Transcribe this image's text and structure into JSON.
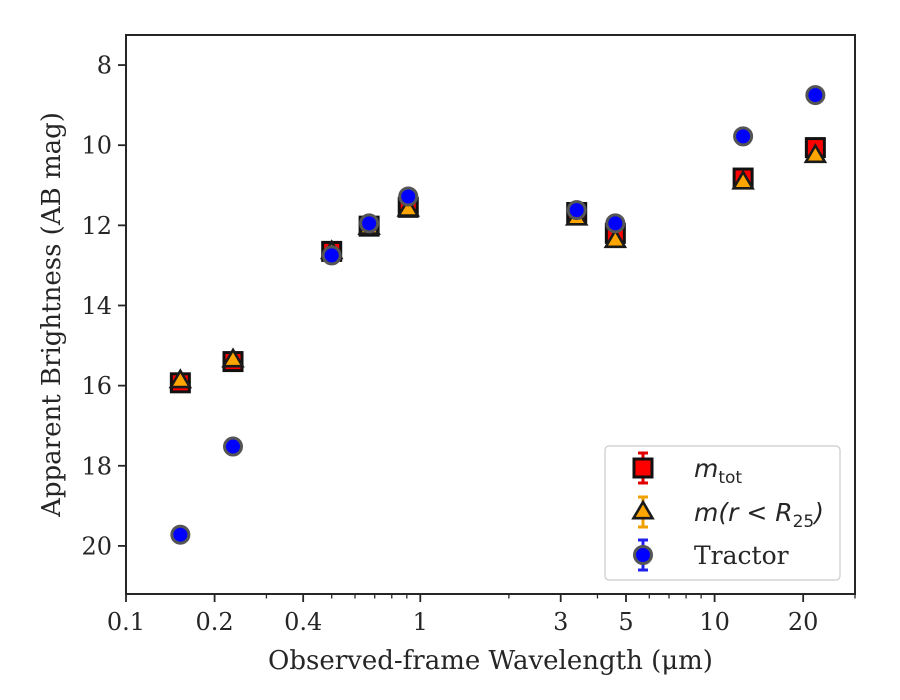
{
  "chart_data": {
    "type": "scatter",
    "xlabel": "Observed-frame Wavelength (μm)",
    "ylabel": "Apparent Brightness (AB mag)",
    "x_scale": "log",
    "xlim": [
      0.1,
      30
    ],
    "ylim": [
      21.2,
      7.25
    ],
    "y_inverted": true,
    "x_ticks": [
      0.1,
      0.2,
      0.4,
      1,
      3,
      5,
      10,
      20
    ],
    "x_tick_labels": [
      "0.1",
      "0.2",
      "0.4",
      "1",
      "3",
      "5",
      "10",
      "20"
    ],
    "y_ticks": [
      8,
      10,
      12,
      14,
      16,
      18,
      20
    ],
    "y_tick_labels": [
      "8",
      "10",
      "12",
      "14",
      "16",
      "18",
      "20"
    ],
    "grid": false,
    "legend_position": "bottom-right",
    "series": [
      {
        "name": "m_tot",
        "legend_parts": [
          "m",
          "tot",
          ""
        ],
        "marker": "square",
        "color": "#ff0000",
        "errorbar_color": "#e00000",
        "x": [
          0.153,
          0.231,
          0.5,
          0.67,
          0.91,
          3.4,
          4.6,
          12.5,
          22
        ],
        "y": [
          15.93,
          15.4,
          12.65,
          12.02,
          11.55,
          11.68,
          12.2,
          10.82,
          10.06
        ]
      },
      {
        "name": "m(r < R25)",
        "legend_parts": [
          "m(r < R",
          "25",
          ")"
        ],
        "marker": "triangle",
        "color": "#ffa500",
        "errorbar_color": "#f0a000",
        "x": [
          0.153,
          0.231,
          0.5,
          0.67,
          0.91,
          3.4,
          4.6,
          12.5,
          22
        ],
        "y": [
          15.88,
          15.36,
          12.66,
          12.05,
          11.6,
          11.82,
          12.38,
          10.92,
          10.26
        ]
      },
      {
        "name": "Tractor",
        "legend_parts": [
          "Tractor",
          "",
          ""
        ],
        "marker": "circle",
        "color": "#0000ff",
        "errorbar_color": "#2020ee",
        "x": [
          0.153,
          0.231,
          0.5,
          0.67,
          0.91,
          3.4,
          4.6,
          12.5,
          22
        ],
        "y": [
          19.72,
          17.52,
          12.75,
          11.95,
          11.28,
          11.62,
          11.95,
          9.78,
          8.75
        ]
      }
    ]
  }
}
